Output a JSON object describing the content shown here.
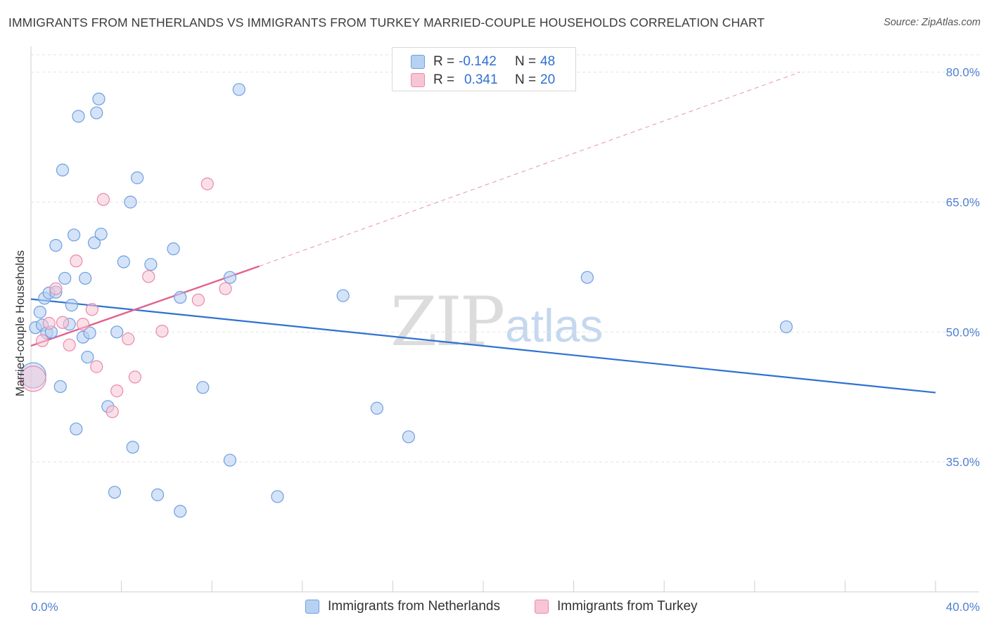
{
  "title": "IMMIGRANTS FROM NETHERLANDS VS IMMIGRANTS FROM TURKEY MARRIED-COUPLE HOUSEHOLDS CORRELATION CHART",
  "source": "Source: ZipAtlas.com",
  "watermark": {
    "zip": "ZIP",
    "atlas": "atlas"
  },
  "legend": {
    "rows": [
      {
        "r_label": "R =",
        "r_value": "-0.142",
        "n_label": "N =",
        "n_value": "48"
      },
      {
        "r_label": "R =",
        "r_value": "0.341",
        "n_label": "N =",
        "n_value": "20"
      }
    ]
  },
  "bottom_legend": [
    "Immigrants from Netherlands",
    "Immigrants from Turkey"
  ],
  "colors": {
    "netherlands_fill": "#b7d1f3",
    "netherlands_stroke": "#6f9fe0",
    "netherlands_line": "#2f72d0",
    "turkey_fill": "#f7c5d5",
    "turkey_stroke": "#e98aa8",
    "turkey_line": "#e0638f",
    "grid": "#e2e2e2",
    "tick": "#4f7fd0"
  },
  "chart_data": {
    "type": "scatter",
    "title": "IMMIGRANTS FROM NETHERLANDS VS IMMIGRANTS FROM TURKEY MARRIED-COUPLE HOUSEHOLDS CORRELATION CHART",
    "xlabel": "",
    "ylabel": "Married-couple Households",
    "xlim": [
      0,
      40
    ],
    "ylim": [
      20,
      82
    ],
    "x_tick_labels": [
      "0.0%",
      "40.0%"
    ],
    "y_ticks": [
      35,
      50,
      65,
      80
    ],
    "y_tick_labels": [
      "35.0%",
      "50.0%",
      "65.0%",
      "80.0%"
    ],
    "grid": true,
    "legend_position": "top-center",
    "series": [
      {
        "name": "Immigrants from Netherlands",
        "R": -0.142,
        "N": 48,
        "trend": {
          "x": [
            0,
            40
          ],
          "y": [
            53.8,
            43.0
          ],
          "style": "solid"
        },
        "points": [
          {
            "x": 0.1,
            "y": 45.0,
            "big": true
          },
          {
            "x": 0.2,
            "y": 50.5
          },
          {
            "x": 0.4,
            "y": 52.3
          },
          {
            "x": 0.5,
            "y": 50.8
          },
          {
            "x": 0.6,
            "y": 53.9
          },
          {
            "x": 0.7,
            "y": 49.9
          },
          {
            "x": 0.8,
            "y": 54.5
          },
          {
            "x": 0.9,
            "y": 50.0
          },
          {
            "x": 1.1,
            "y": 54.6
          },
          {
            "x": 1.1,
            "y": 60.0
          },
          {
            "x": 1.3,
            "y": 43.7
          },
          {
            "x": 1.4,
            "y": 68.7
          },
          {
            "x": 1.5,
            "y": 56.2
          },
          {
            "x": 1.7,
            "y": 50.9
          },
          {
            "x": 1.8,
            "y": 53.1
          },
          {
            "x": 1.9,
            "y": 61.2
          },
          {
            "x": 2.0,
            "y": 38.8
          },
          {
            "x": 2.1,
            "y": 74.9
          },
          {
            "x": 2.3,
            "y": 49.4
          },
          {
            "x": 2.4,
            "y": 56.2
          },
          {
            "x": 2.5,
            "y": 47.1
          },
          {
            "x": 2.6,
            "y": 49.9
          },
          {
            "x": 2.8,
            "y": 60.3
          },
          {
            "x": 2.9,
            "y": 75.3
          },
          {
            "x": 3.0,
            "y": 76.9
          },
          {
            "x": 3.1,
            "y": 61.3
          },
          {
            "x": 3.4,
            "y": 41.4
          },
          {
            "x": 3.7,
            "y": 31.5
          },
          {
            "x": 3.8,
            "y": 50.0
          },
          {
            "x": 4.1,
            "y": 58.1
          },
          {
            "x": 4.4,
            "y": 65.0
          },
          {
            "x": 4.5,
            "y": 36.7
          },
          {
            "x": 4.7,
            "y": 67.8
          },
          {
            "x": 5.3,
            "y": 57.8
          },
          {
            "x": 5.6,
            "y": 31.2
          },
          {
            "x": 6.3,
            "y": 59.6
          },
          {
            "x": 6.6,
            "y": 54.0
          },
          {
            "x": 6.6,
            "y": 29.3
          },
          {
            "x": 7.6,
            "y": 43.6
          },
          {
            "x": 8.8,
            "y": 35.2
          },
          {
            "x": 8.8,
            "y": 56.3
          },
          {
            "x": 9.2,
            "y": 78.0
          },
          {
            "x": 10.9,
            "y": 31.0
          },
          {
            "x": 13.8,
            "y": 54.2
          },
          {
            "x": 15.3,
            "y": 41.2
          },
          {
            "x": 16.7,
            "y": 37.9
          },
          {
            "x": 24.6,
            "y": 56.3
          },
          {
            "x": 33.4,
            "y": 50.6
          }
        ]
      },
      {
        "name": "Immigrants from Turkey",
        "R": 0.341,
        "N": 20,
        "trend": {
          "x": [
            0,
            10.1
          ],
          "y": [
            48.4,
            57.6
          ],
          "style": "solid",
          "extended": {
            "x": [
              10.1,
              34.0
            ],
            "y": [
              57.6,
              80.0
            ],
            "style": "dashed"
          }
        },
        "points": [
          {
            "x": 0.1,
            "y": 44.6,
            "big": true
          },
          {
            "x": 0.5,
            "y": 49.0
          },
          {
            "x": 0.8,
            "y": 51.0
          },
          {
            "x": 1.1,
            "y": 55.0
          },
          {
            "x": 1.4,
            "y": 51.1
          },
          {
            "x": 1.7,
            "y": 48.5
          },
          {
            "x": 2.0,
            "y": 58.2
          },
          {
            "x": 2.3,
            "y": 50.9
          },
          {
            "x": 2.7,
            "y": 52.6
          },
          {
            "x": 2.9,
            "y": 46.0
          },
          {
            "x": 3.2,
            "y": 65.3
          },
          {
            "x": 3.6,
            "y": 40.8
          },
          {
            "x": 3.8,
            "y": 43.2
          },
          {
            "x": 4.3,
            "y": 49.2
          },
          {
            "x": 4.6,
            "y": 44.8
          },
          {
            "x": 5.2,
            "y": 56.4
          },
          {
            "x": 5.8,
            "y": 50.1
          },
          {
            "x": 7.4,
            "y": 53.7
          },
          {
            "x": 7.8,
            "y": 67.1
          },
          {
            "x": 8.6,
            "y": 55.0
          }
        ]
      }
    ]
  }
}
